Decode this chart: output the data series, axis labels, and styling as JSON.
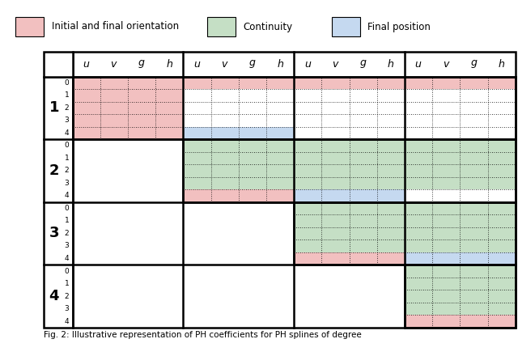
{
  "title": "Fig. 2: Illustrative representation of PH coefficients for PH splines of degree",
  "legend": {
    "initial_final_orientation": {
      "label": "Initial and final orientation",
      "color": "#f2c0c0"
    },
    "continuity": {
      "label": "Continuity",
      "color": "#c5dfc5"
    },
    "final_position": {
      "label": "Final position",
      "color": "#c5d9f0"
    }
  },
  "col_labels": [
    "u",
    "v",
    "g",
    "h"
  ],
  "row_labels": [
    "1",
    "2",
    "3",
    "4"
  ],
  "sub_row_labels": [
    "0",
    "1",
    "2",
    "3",
    "4"
  ],
  "pink_color": "#f2c0c0",
  "green_color": "#c5dfc5",
  "blue_color": "#c5d9f0",
  "white_color": "#ffffff",
  "background": "#ffffff",
  "n_seg_groups": 4,
  "n_row_groups": 4,
  "n_sub_rows": 5,
  "n_sub_cols": 4,
  "colored_regions": [
    {
      "seg": 0,
      "rg": 0,
      "sr0": 0,
      "sr1": 1,
      "color": "pink"
    },
    {
      "seg": 1,
      "rg": 0,
      "sr0": 0,
      "sr1": 1,
      "color": "pink"
    },
    {
      "seg": 2,
      "rg": 0,
      "sr0": 0,
      "sr1": 1,
      "color": "pink"
    },
    {
      "seg": 3,
      "rg": 0,
      "sr0": 0,
      "sr1": 1,
      "color": "pink"
    },
    {
      "seg": 0,
      "rg": 0,
      "sr0": 1,
      "sr1": 5,
      "color": "pink"
    },
    {
      "seg": 1,
      "rg": 0,
      "sr0": 4,
      "sr1": 5,
      "color": "blue"
    },
    {
      "seg": 1,
      "rg": 1,
      "sr0": 0,
      "sr1": 4,
      "color": "green"
    },
    {
      "seg": 1,
      "rg": 1,
      "sr0": 4,
      "sr1": 5,
      "color": "pink"
    },
    {
      "seg": 2,
      "rg": 1,
      "sr0": 0,
      "sr1": 4,
      "color": "green"
    },
    {
      "seg": 2,
      "rg": 1,
      "sr0": 4,
      "sr1": 5,
      "color": "blue"
    },
    {
      "seg": 3,
      "rg": 1,
      "sr0": 0,
      "sr1": 4,
      "color": "green"
    },
    {
      "seg": 2,
      "rg": 2,
      "sr0": 0,
      "sr1": 4,
      "color": "green"
    },
    {
      "seg": 2,
      "rg": 2,
      "sr0": 4,
      "sr1": 5,
      "color": "pink"
    },
    {
      "seg": 3,
      "rg": 2,
      "sr0": 0,
      "sr1": 4,
      "color": "green"
    },
    {
      "seg": 3,
      "rg": 2,
      "sr0": 4,
      "sr1": 5,
      "color": "blue"
    },
    {
      "seg": 3,
      "rg": 3,
      "sr0": 0,
      "sr1": 4,
      "color": "green"
    },
    {
      "seg": 3,
      "rg": 3,
      "sr0": 4,
      "sr1": 5,
      "color": "pink"
    }
  ],
  "dotted_regions": [
    {
      "seg": 0,
      "rg": 0
    },
    {
      "seg": 1,
      "rg": 0
    },
    {
      "seg": 2,
      "rg": 0
    },
    {
      "seg": 3,
      "rg": 0
    },
    {
      "seg": 1,
      "rg": 1
    },
    {
      "seg": 2,
      "rg": 1
    },
    {
      "seg": 3,
      "rg": 1
    },
    {
      "seg": 2,
      "rg": 2
    },
    {
      "seg": 3,
      "rg": 2
    },
    {
      "seg": 3,
      "rg": 3
    }
  ]
}
